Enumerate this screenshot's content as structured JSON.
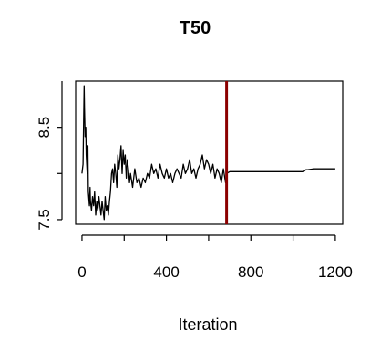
{
  "chart_data": {
    "type": "line",
    "title": "T50",
    "xlabel": "Iteration",
    "ylabel": "",
    "xlim": [
      -30,
      1235
    ],
    "ylim": [
      7.45,
      9.0
    ],
    "x_ticks": [
      0,
      400,
      800,
      1200
    ],
    "x_tick_labels": [
      "0",
      "400",
      "800",
      "1200"
    ],
    "y_ticks": [
      7.5,
      8.0,
      8.5
    ],
    "y_tick_labels": [
      "7.5",
      "",
      "8.5"
    ],
    "grid": false,
    "legend": "none",
    "vline": {
      "x": 685,
      "color": "#8b0000"
    },
    "series": [
      {
        "color": "#000000",
        "x": [
          0,
          5,
          10,
          12,
          15,
          18,
          20,
          25,
          28,
          30,
          35,
          38,
          40,
          45,
          50,
          55,
          60,
          65,
          70,
          75,
          80,
          85,
          90,
          95,
          100,
          105,
          110,
          115,
          120,
          125,
          130,
          135,
          140,
          145,
          150,
          155,
          160,
          165,
          170,
          175,
          180,
          185,
          190,
          195,
          200,
          205,
          210,
          215,
          220,
          225,
          230,
          240,
          250,
          260,
          270,
          280,
          290,
          300,
          310,
          320,
          330,
          340,
          350,
          360,
          370,
          380,
          390,
          400,
          410,
          420,
          430,
          440,
          450,
          460,
          470,
          480,
          490,
          500,
          510,
          520,
          530,
          540,
          550,
          560,
          570,
          580,
          590,
          600,
          610,
          620,
          630,
          640,
          650,
          660,
          670,
          680,
          685,
          700,
          800,
          900,
          1000,
          1050,
          1060,
          1070,
          1100,
          1150,
          1200
        ],
        "values": [
          8.0,
          8.1,
          8.95,
          8.7,
          8.4,
          8.5,
          8.2,
          8.0,
          8.3,
          7.8,
          7.65,
          7.85,
          7.7,
          7.6,
          7.75,
          7.65,
          7.8,
          7.55,
          7.7,
          7.6,
          7.75,
          7.65,
          7.55,
          7.7,
          7.6,
          7.5,
          7.75,
          7.6,
          7.65,
          7.55,
          7.7,
          7.8,
          8.0,
          8.05,
          7.9,
          8.1,
          8.0,
          7.85,
          8.2,
          8.05,
          8.15,
          8.3,
          8.0,
          8.25,
          8.1,
          8.2,
          7.95,
          8.15,
          8.05,
          7.9,
          8.0,
          7.85,
          8.05,
          7.9,
          7.95,
          7.85,
          7.95,
          7.9,
          8.0,
          7.95,
          8.1,
          8.0,
          8.05,
          7.95,
          8.1,
          8.0,
          7.95,
          8.05,
          7.95,
          8.0,
          7.9,
          8.0,
          8.05,
          8.0,
          7.95,
          8.1,
          8.0,
          8.05,
          8.15,
          8.0,
          8.05,
          7.95,
          8.05,
          8.1,
          8.2,
          8.05,
          8.15,
          8.1,
          8.0,
          8.1,
          7.95,
          8.05,
          8.0,
          7.9,
          8.05,
          7.9,
          8.0,
          8.02,
          8.02,
          8.02,
          8.02,
          8.02,
          8.04,
          8.04,
          8.05,
          8.05,
          8.05
        ]
      }
    ]
  }
}
